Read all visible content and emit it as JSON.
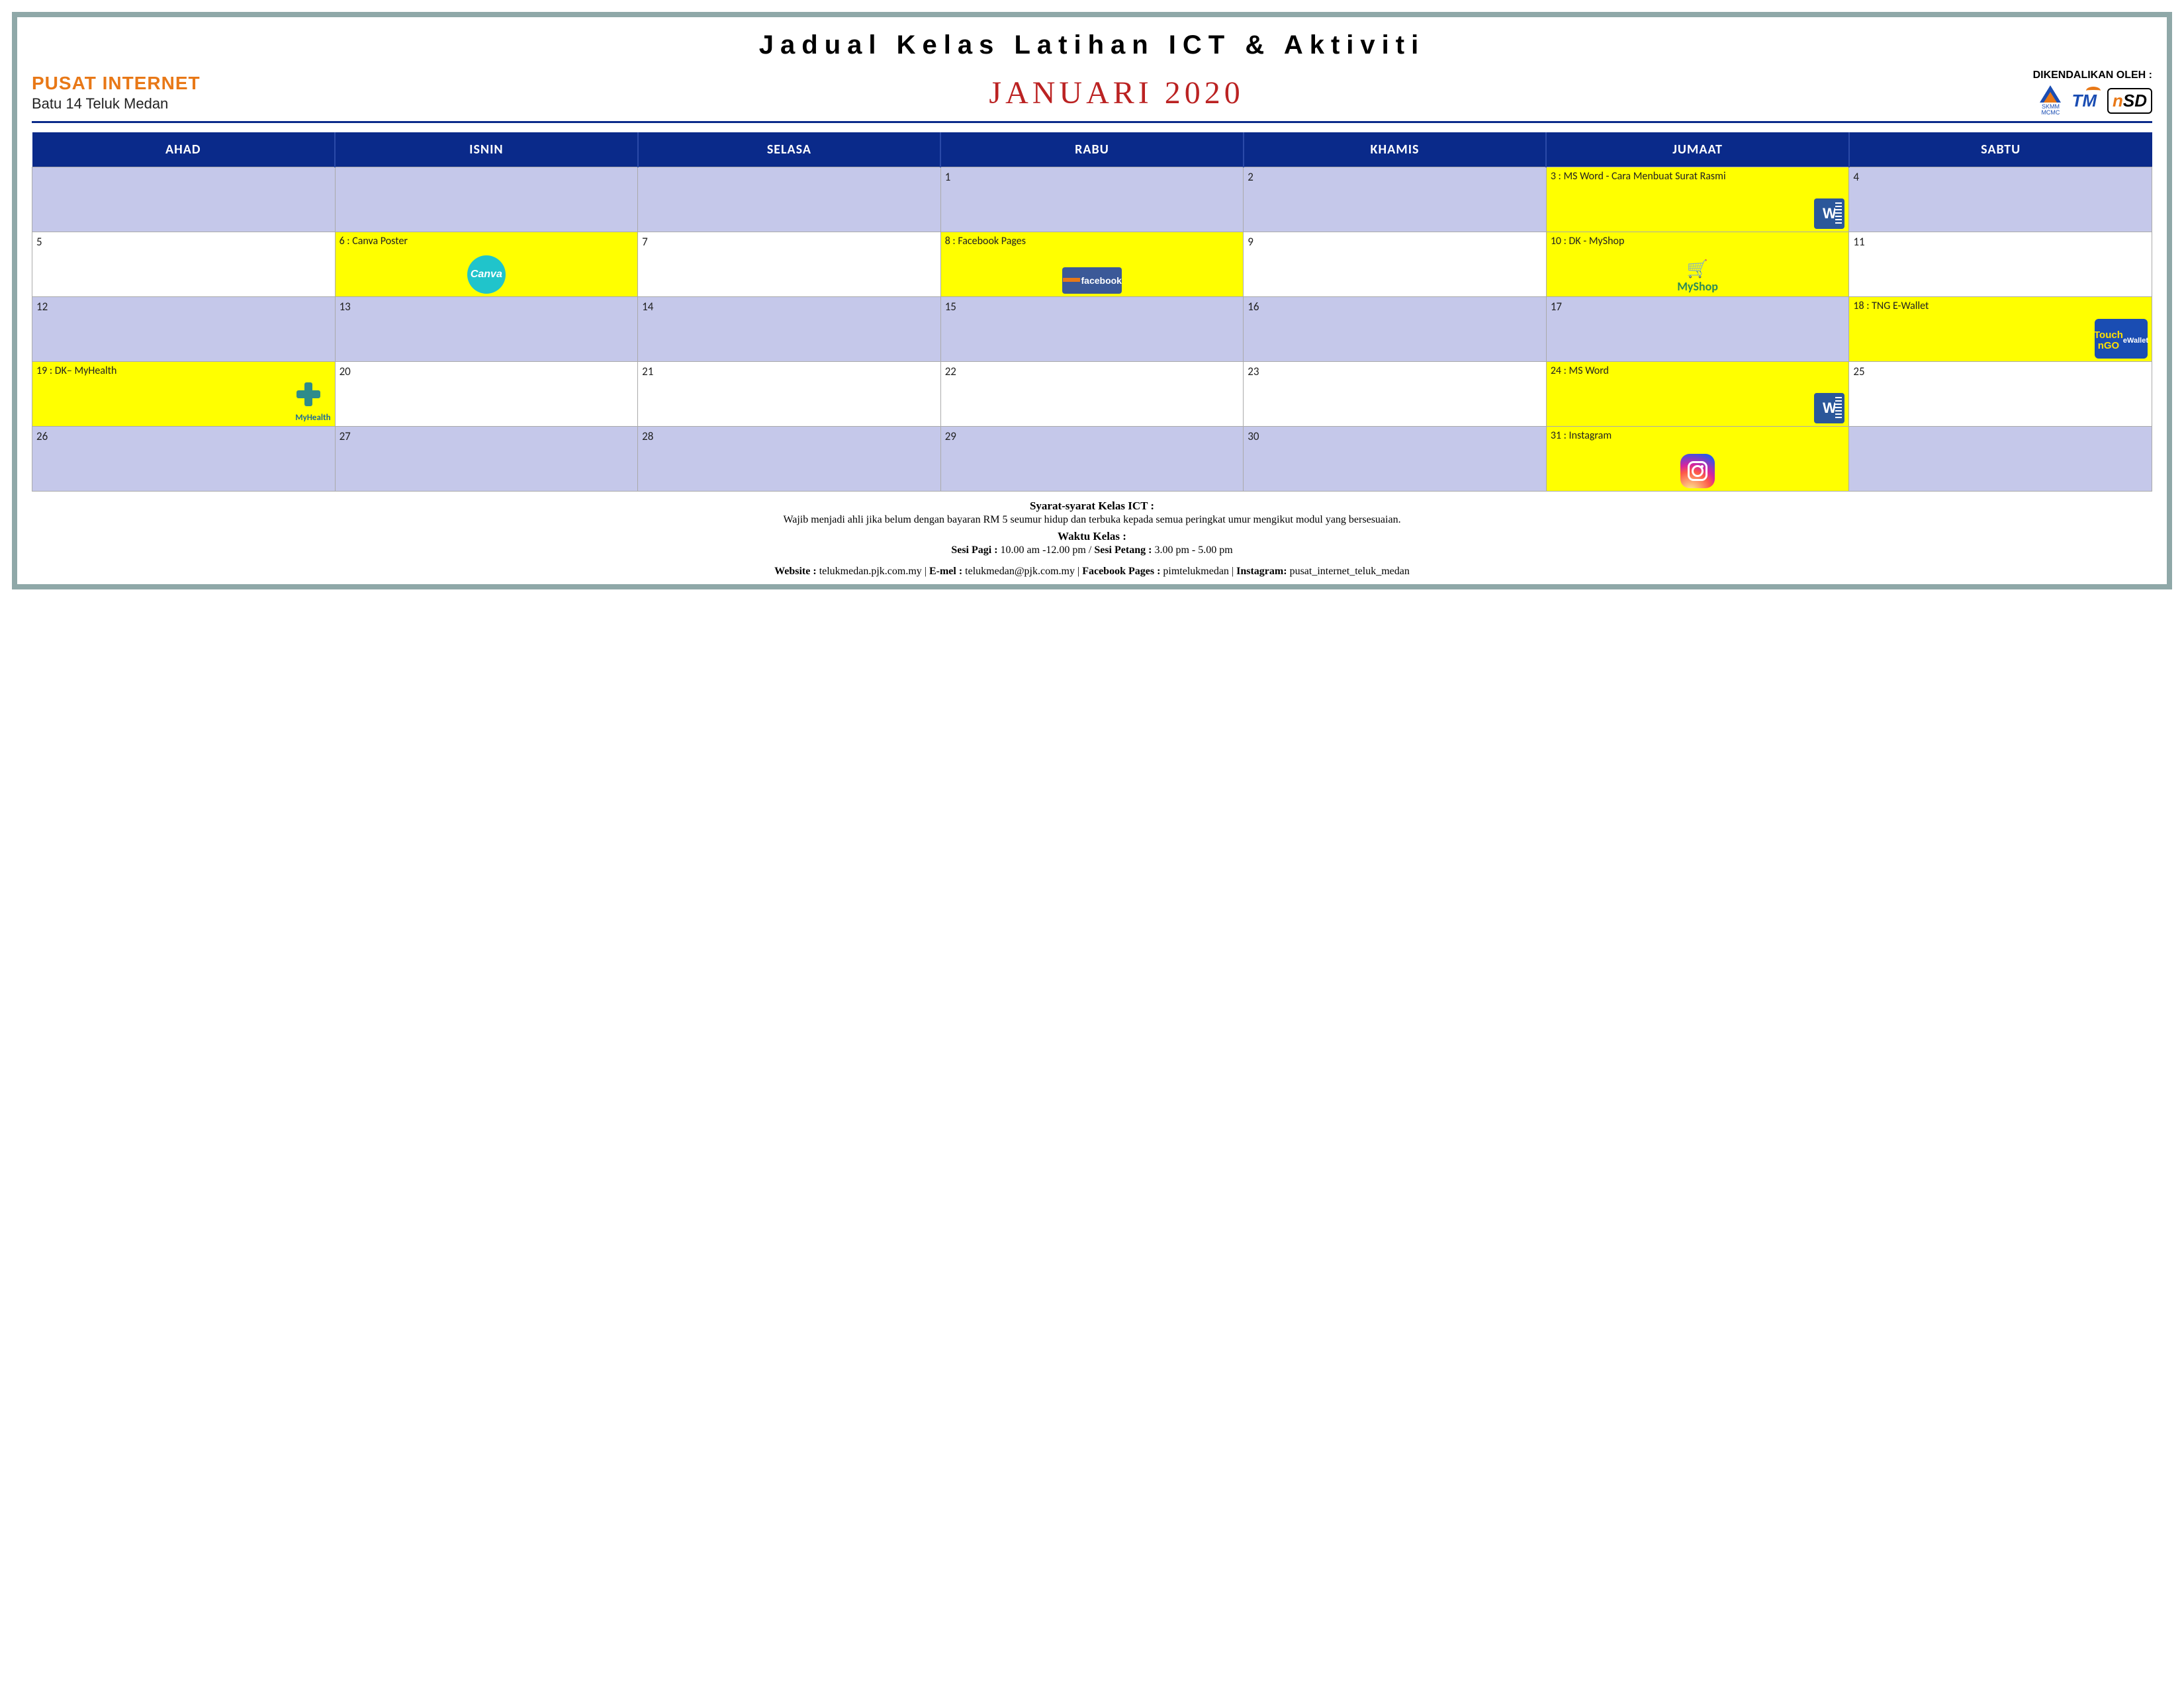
{
  "title": "Jadual Kelas Latihan ICT & Aktiviti",
  "org": {
    "name": "PUSAT INTERNET",
    "sub": "Batu 14 Teluk Medan"
  },
  "month": "JANUARI 2020",
  "operated_label": "DIKENDALIKAN OLEH :",
  "logos": {
    "skmm_top": "SKMM",
    "skmm_bot": "MCMC",
    "tm": "TM",
    "nsd": "nSD"
  },
  "days": [
    "AHAD",
    "ISNIN",
    "SELASA",
    "RABU",
    "KHAMIS",
    "JUMAAT",
    "SABTU"
  ],
  "colors": {
    "frame_border": "#8fa8a8",
    "header_bg": "#0a2a8a",
    "header_divider": "#2b4aa8",
    "tint_row": "#c5c8ea",
    "plain_row": "#ffffff",
    "event_bg": "#ffff00",
    "month_color": "#bb2222",
    "org_color": "#e87817"
  },
  "weeks": [
    {
      "tint": true,
      "cells": [
        {
          "num": "",
          "event": false
        },
        {
          "num": "",
          "event": false
        },
        {
          "num": "",
          "event": false
        },
        {
          "num": "1",
          "event": false
        },
        {
          "num": "2",
          "event": false
        },
        {
          "num": "3",
          "event": true,
          "text": "MS Word - Cara Menbuat Surat Rasmi",
          "icon": "word"
        },
        {
          "num": "4",
          "event": false
        }
      ]
    },
    {
      "tint": false,
      "cells": [
        {
          "num": "5",
          "event": false
        },
        {
          "num": "6",
          "event": true,
          "text": "Canva Poster",
          "icon": "canva"
        },
        {
          "num": "7",
          "event": false
        },
        {
          "num": "8",
          "event": true,
          "text": "Facebook Pages",
          "icon": "facebook"
        },
        {
          "num": "9",
          "event": false
        },
        {
          "num": "10",
          "event": true,
          "text": "DK - MyShop",
          "icon": "myshop"
        },
        {
          "num": "11",
          "event": false
        }
      ]
    },
    {
      "tint": true,
      "cells": [
        {
          "num": "12",
          "event": false
        },
        {
          "num": "13",
          "event": false
        },
        {
          "num": "14",
          "event": false
        },
        {
          "num": "15",
          "event": false
        },
        {
          "num": "16",
          "event": false
        },
        {
          "num": "17",
          "event": false
        },
        {
          "num": "18",
          "event": true,
          "text": "TNG E-Wallet",
          "icon": "tng"
        }
      ]
    },
    {
      "tint": false,
      "cells": [
        {
          "num": "19",
          "event": true,
          "text": "DK– MyHealth",
          "icon": "myhealth"
        },
        {
          "num": "20",
          "event": false
        },
        {
          "num": "21",
          "event": false
        },
        {
          "num": "22",
          "event": false
        },
        {
          "num": "23",
          "event": false
        },
        {
          "num": "24",
          "event": true,
          "text": "MS Word",
          "icon": "word"
        },
        {
          "num": "25",
          "event": false
        }
      ]
    },
    {
      "tint": true,
      "cells": [
        {
          "num": "26",
          "event": false
        },
        {
          "num": "27",
          "event": false
        },
        {
          "num": "28",
          "event": false
        },
        {
          "num": "29",
          "event": false
        },
        {
          "num": "30",
          "event": false
        },
        {
          "num": "31",
          "event": true,
          "text": "Instagram",
          "icon": "instagram"
        },
        {
          "num": "",
          "event": false
        }
      ]
    }
  ],
  "footer": {
    "terms_title": "Syarat-syarat Kelas ICT :",
    "terms_body": "Wajib menjadi ahli jika belum dengan bayaran RM 5 seumur hidup dan terbuka kepada semua peringkat umur mengikut modul yang bersesuaian.",
    "time_title": "Waktu Kelas :",
    "time_morning_label": "Sesi Pagi :",
    "time_morning": " 10.00 am -12.00 pm ",
    "time_sep": "/ ",
    "time_evening_label": "Sesi Petang :",
    "time_evening": " 3.00 pm - 5.00 pm"
  },
  "contacts": {
    "website_label": "Website : ",
    "website": "telukmedan.pjk.com.my",
    "email_label": "E-mel : ",
    "email": "telukmedan@pjk.com.my",
    "fb_label": "Facebook Pages : ",
    "fb": "pimtelukmedan",
    "ig_label": "Instagram: ",
    "ig": "pusat_internet_teluk_medan",
    "sep": " | "
  },
  "icon_text": {
    "word": "W",
    "canva": "Canva",
    "facebook": "facebook",
    "myshop_brand": "MyShop",
    "tng_brand": "Touch\nnGO",
    "tng_sub": "eWallet",
    "myhealth_brand": "MyHealth"
  }
}
